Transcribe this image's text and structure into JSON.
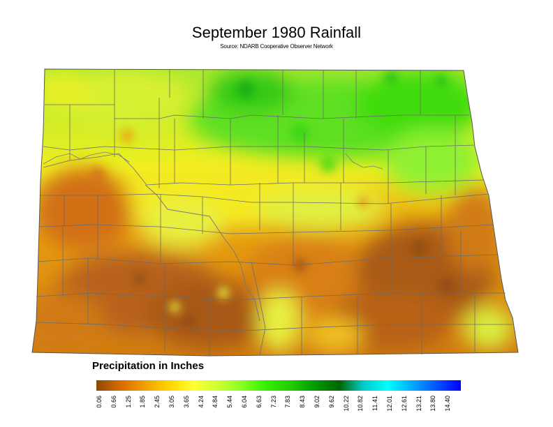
{
  "title": "September 1980 Rainfall",
  "subtitle": "Source: NDARB Cooperative Observer Network",
  "legend": {
    "title": "Precipitation in Inches",
    "ticks": [
      "0.06",
      "0.66",
      "1.25",
      "1.85",
      "2.45",
      "3.05",
      "3.65",
      "4.24",
      "4.84",
      "5.44",
      "6.04",
      "6.63",
      "7.23",
      "7.83",
      "8.43",
      "9.02",
      "9.62",
      "10.22",
      "10.82",
      "11.41",
      "12.01",
      "12.61",
      "13.21",
      "13.80",
      "14.40"
    ],
    "colors": [
      "#8b4a00",
      "#d96a00",
      "#f0a000",
      "#ffd500",
      "#ffff33",
      "#ccff33",
      "#88ff22",
      "#33ee00",
      "#22cc00",
      "#009900",
      "#006600",
      "#00cccc",
      "#00ffff",
      "#00aaff",
      "#0055ff",
      "#0000ff"
    ]
  },
  "map": {
    "region": "North Dakota",
    "palette": {
      "dry": "#b05a10",
      "low": "#e08a10",
      "mid": "#ffe020",
      "moderate": "#c8f040",
      "wet": "#40e020",
      "wettest": "#10b010"
    }
  }
}
